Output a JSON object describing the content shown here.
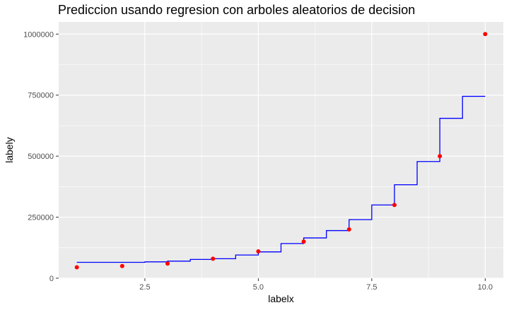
{
  "chart_data": {
    "type": "scatter",
    "title": "Prediccion usando regresion con arboles aleatorios de decision",
    "xlabel": "labelx",
    "ylabel": "labely",
    "xlim": [
      0.6,
      10.4
    ],
    "ylim": [
      0,
      1050000
    ],
    "x_ticks": [
      2.5,
      5.0,
      7.5,
      10.0
    ],
    "x_tick_labels": [
      "2.5",
      "5.0",
      "7.5",
      "10.0"
    ],
    "y_ticks": [
      0,
      250000,
      500000,
      750000,
      1000000
    ],
    "y_tick_labels": [
      "0",
      "250000",
      "500000",
      "750000",
      "1000000"
    ],
    "grid": true,
    "background": "#ebebeb",
    "series": [
      {
        "type": "scatter",
        "color": "#ff0000",
        "x": [
          1,
          2,
          3,
          4,
          5,
          6,
          7,
          8,
          9,
          10
        ],
        "y": [
          45000,
          50000,
          60000,
          80000,
          110000,
          150000,
          200000,
          300000,
          500000,
          1000000
        ]
      },
      {
        "type": "step",
        "color": "#0000ff",
        "x": [
          1.0,
          2.5,
          3.0,
          3.5,
          4.0,
          4.5,
          5.0,
          5.5,
          6.0,
          6.5,
          7.0,
          7.5,
          8.0,
          8.5,
          9.0,
          9.5,
          10.0
        ],
        "y": [
          65000,
          67000,
          70000,
          77000,
          80000,
          95000,
          108000,
          142000,
          165000,
          195000,
          240000,
          300000,
          383000,
          478000,
          655000,
          745000,
          745000
        ]
      }
    ]
  }
}
